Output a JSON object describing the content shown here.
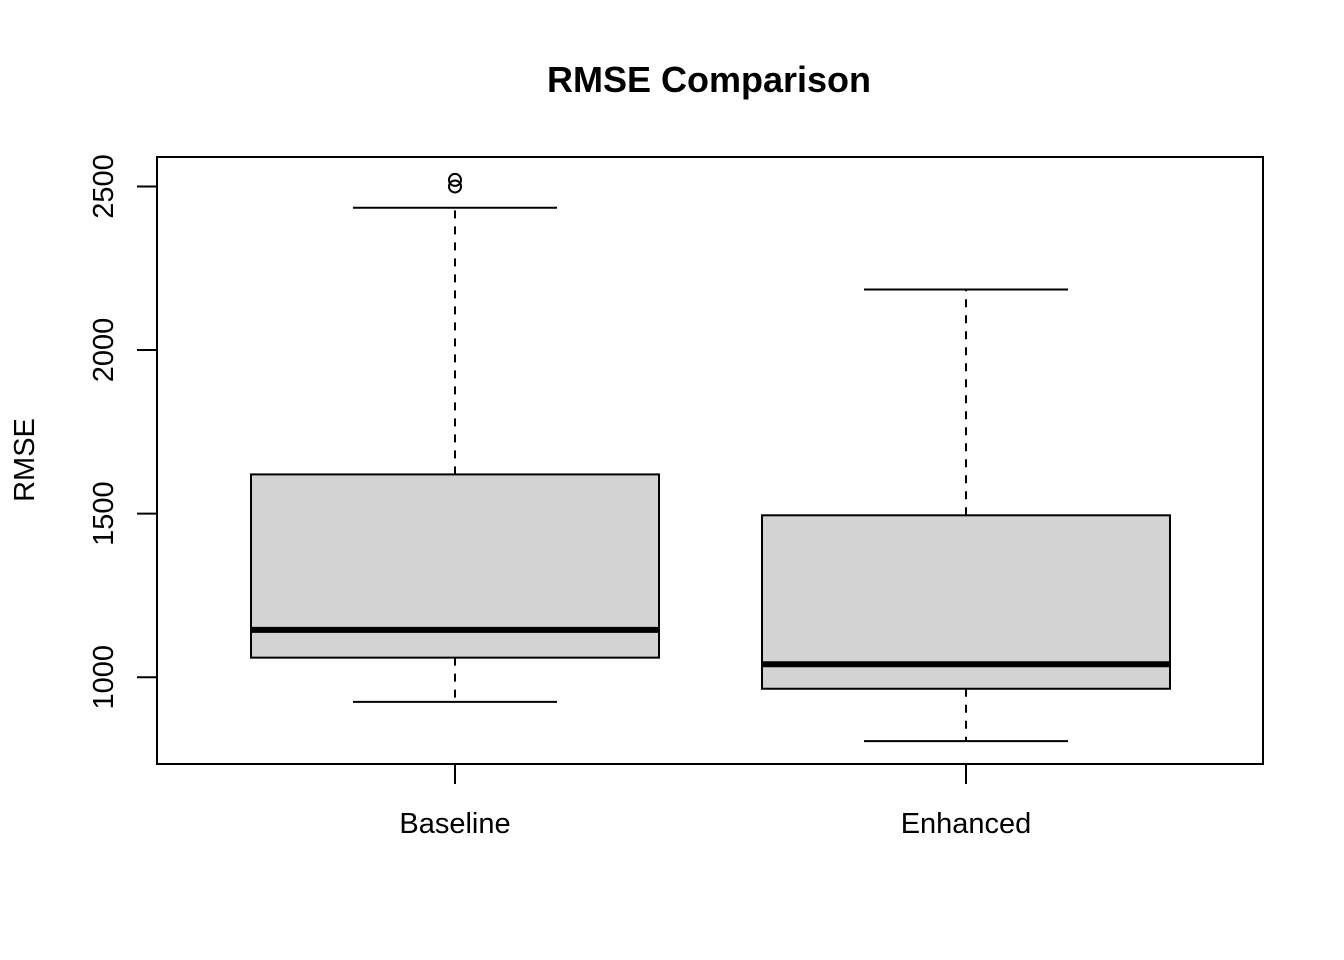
{
  "chart_data": {
    "type": "boxplot",
    "title": "RMSE Comparison",
    "xlabel": "",
    "ylabel": "RMSE",
    "categories": [
      "Baseline",
      "Enhanced"
    ],
    "ylim": [
      735,
      2590
    ],
    "yticks": [
      1000,
      1500,
      2000,
      2500
    ],
    "box_fill": "#d3d3d3",
    "boxes": [
      {
        "name": "Baseline",
        "whisker_low": 925,
        "q1": 1060,
        "median": 1145,
        "q3": 1620,
        "whisker_high": 2435,
        "outliers": [
          2500,
          2520
        ]
      },
      {
        "name": "Enhanced",
        "whisker_low": 805,
        "q1": 965,
        "median": 1040,
        "q3": 1495,
        "whisker_high": 2185,
        "outliers": []
      }
    ],
    "grid": false,
    "legend": "none"
  }
}
